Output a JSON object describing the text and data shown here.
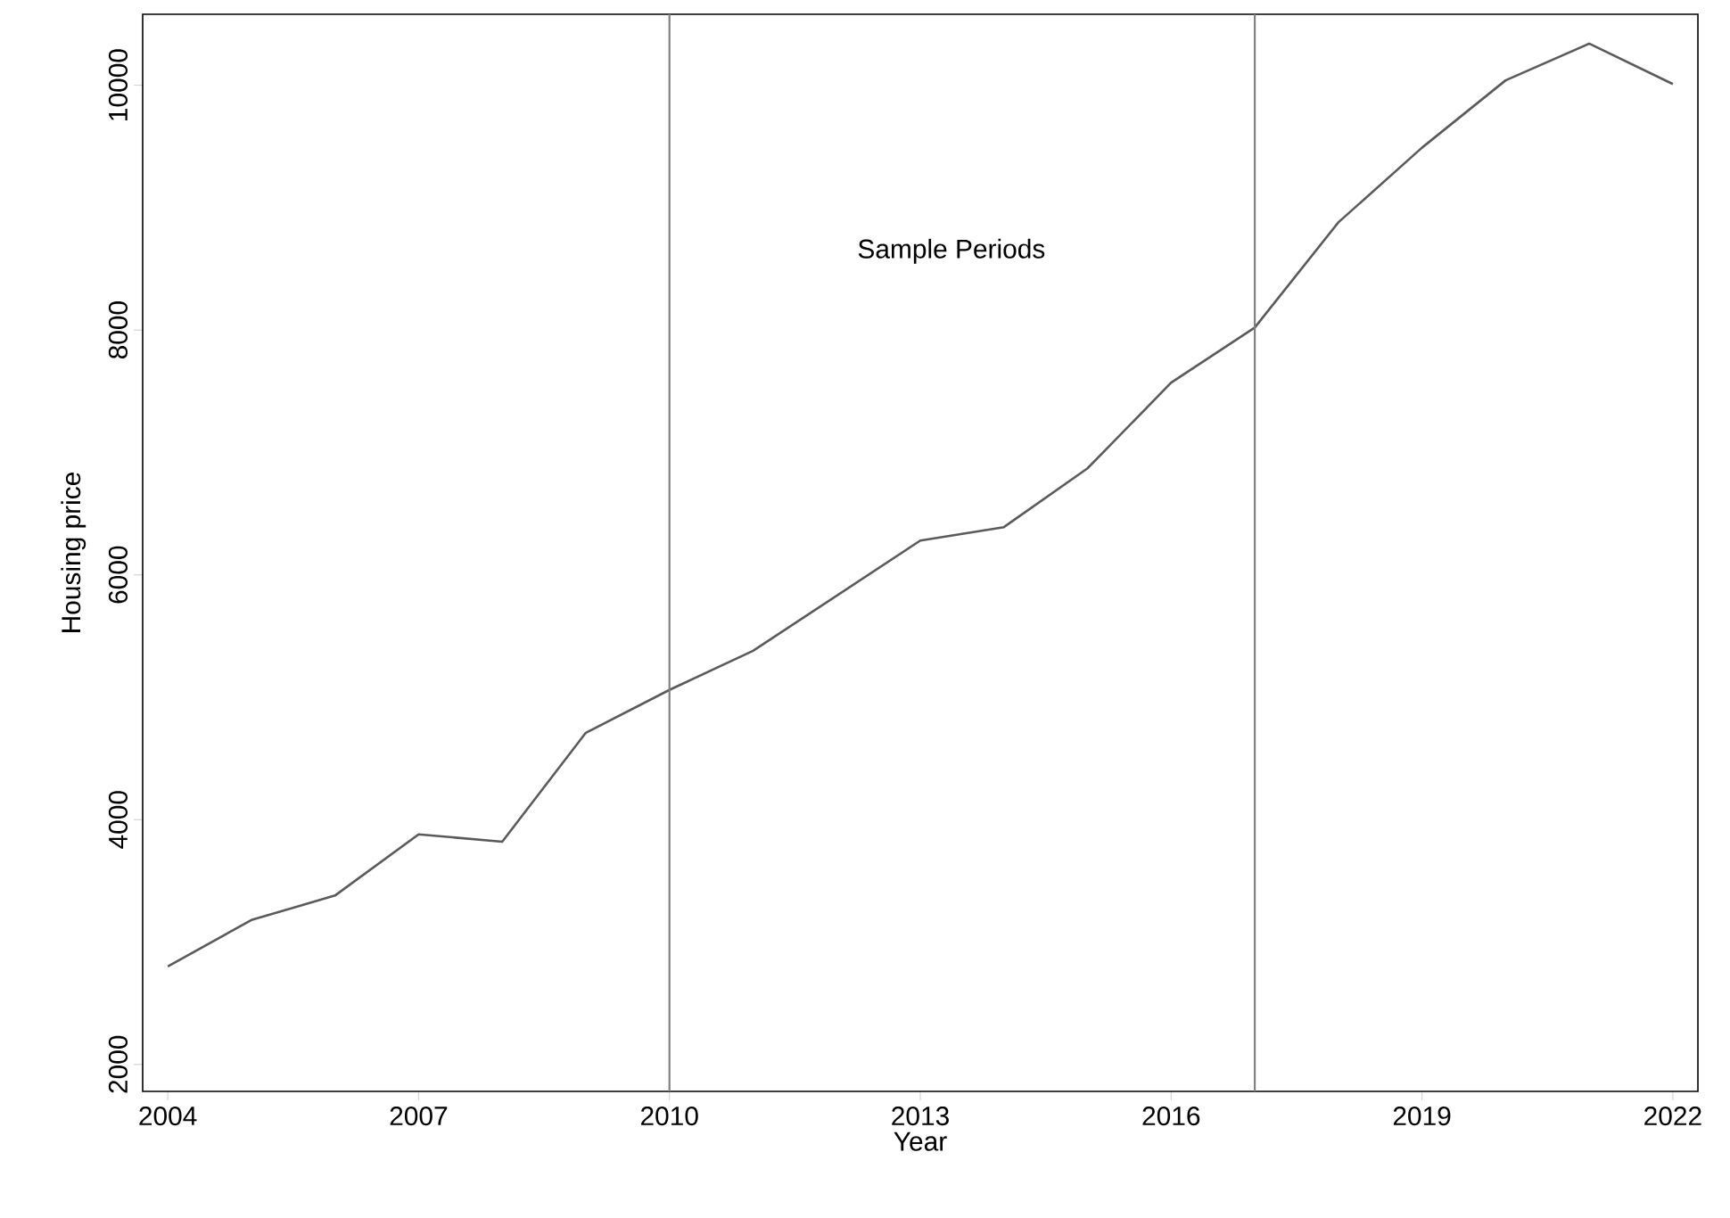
{
  "chart_data": {
    "type": "line",
    "xlabel": "Year",
    "ylabel": "Housing price",
    "x": [
      2004,
      2005,
      2006,
      2007,
      2008,
      2009,
      2010,
      2011,
      2012,
      2013,
      2014,
      2015,
      2016,
      2017,
      2018,
      2019,
      2020,
      2021,
      2022
    ],
    "series": [
      {
        "color": "#5a5a5a",
        "values": [
          2800,
          3180,
          3380,
          3880,
          3820,
          4710,
          5060,
          5380,
          5830,
          6280,
          6390,
          6870,
          7570,
          8020,
          8880,
          9490,
          10040,
          10340,
          10010
        ]
      }
    ],
    "xlim": [
      2003.7,
      2022.3
    ],
    "ylim": [
      1780,
      10580
    ],
    "xticks": [
      2004,
      2007,
      2010,
      2013,
      2016,
      2019,
      2022
    ],
    "yticks": [
      2000,
      4000,
      6000,
      8000,
      10000
    ],
    "ref_lines": [
      {
        "axis": "x",
        "value": 2010,
        "color": "#808080"
      },
      {
        "axis": "x",
        "value": 2017,
        "color": "#808080"
      }
    ],
    "annotations": [
      "Sample Periods"
    ],
    "grid": false,
    "marker": "none",
    "line_style": "solid"
  }
}
